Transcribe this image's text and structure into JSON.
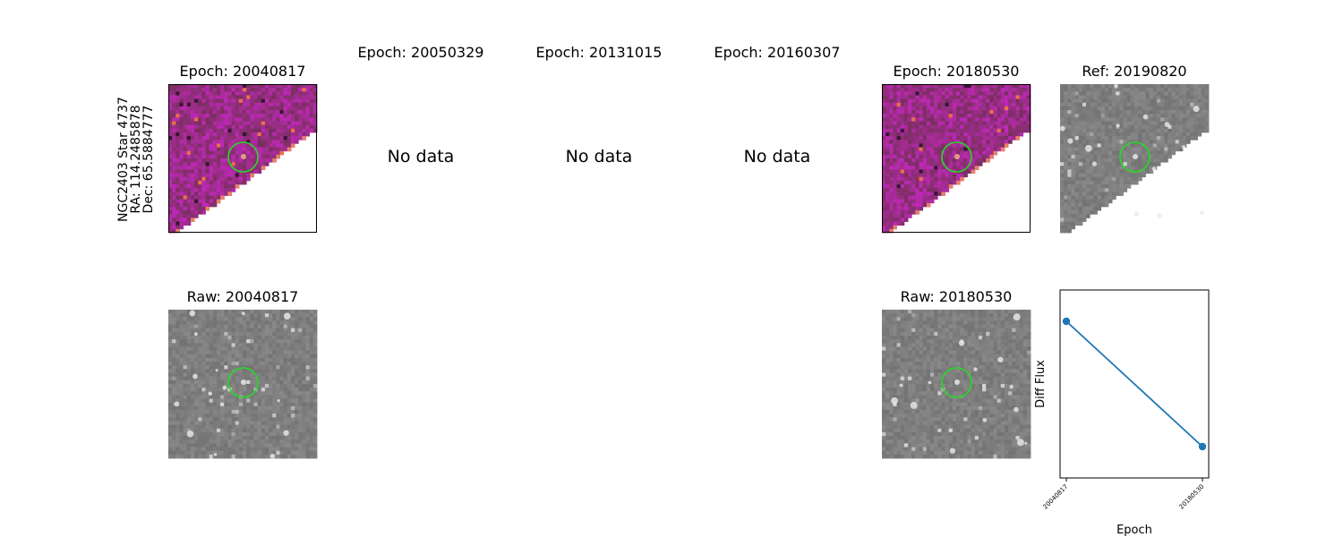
{
  "star_info": {
    "name": "NGC2403 Star 4737",
    "ra": "RA: 114.2485878",
    "dec": "Dec: 65.5884777"
  },
  "top_row": [
    {
      "title": "Epoch: 20040817",
      "has_data": true
    },
    {
      "title": "Epoch: 20050329",
      "has_data": false,
      "message": "No data"
    },
    {
      "title": "Epoch: 20131015",
      "has_data": false,
      "message": "No data"
    },
    {
      "title": "Epoch: 20160307",
      "has_data": false,
      "message": "No data"
    },
    {
      "title": "Epoch: 20180530",
      "has_data": true
    },
    {
      "title": "Ref: 20190820",
      "has_data": true
    }
  ],
  "bottom_row": [
    {
      "title": "Raw: 20040817"
    },
    {
      "title": "Raw: 20180530"
    }
  ],
  "colors": {
    "difference_map": "#7a2a78",
    "raw_map": "#777777",
    "marker_circle": "#22dd22",
    "line": "#1f77b4"
  },
  "chart_data": {
    "type": "line",
    "title": "",
    "xlabel": "Epoch",
    "ylabel": "Diff Flux",
    "categories": [
      "20040817",
      "20180530"
    ],
    "series": [
      {
        "values": [
          1.0,
          0.0
        ]
      }
    ],
    "y_ticks_shown": false,
    "grid": false
  }
}
